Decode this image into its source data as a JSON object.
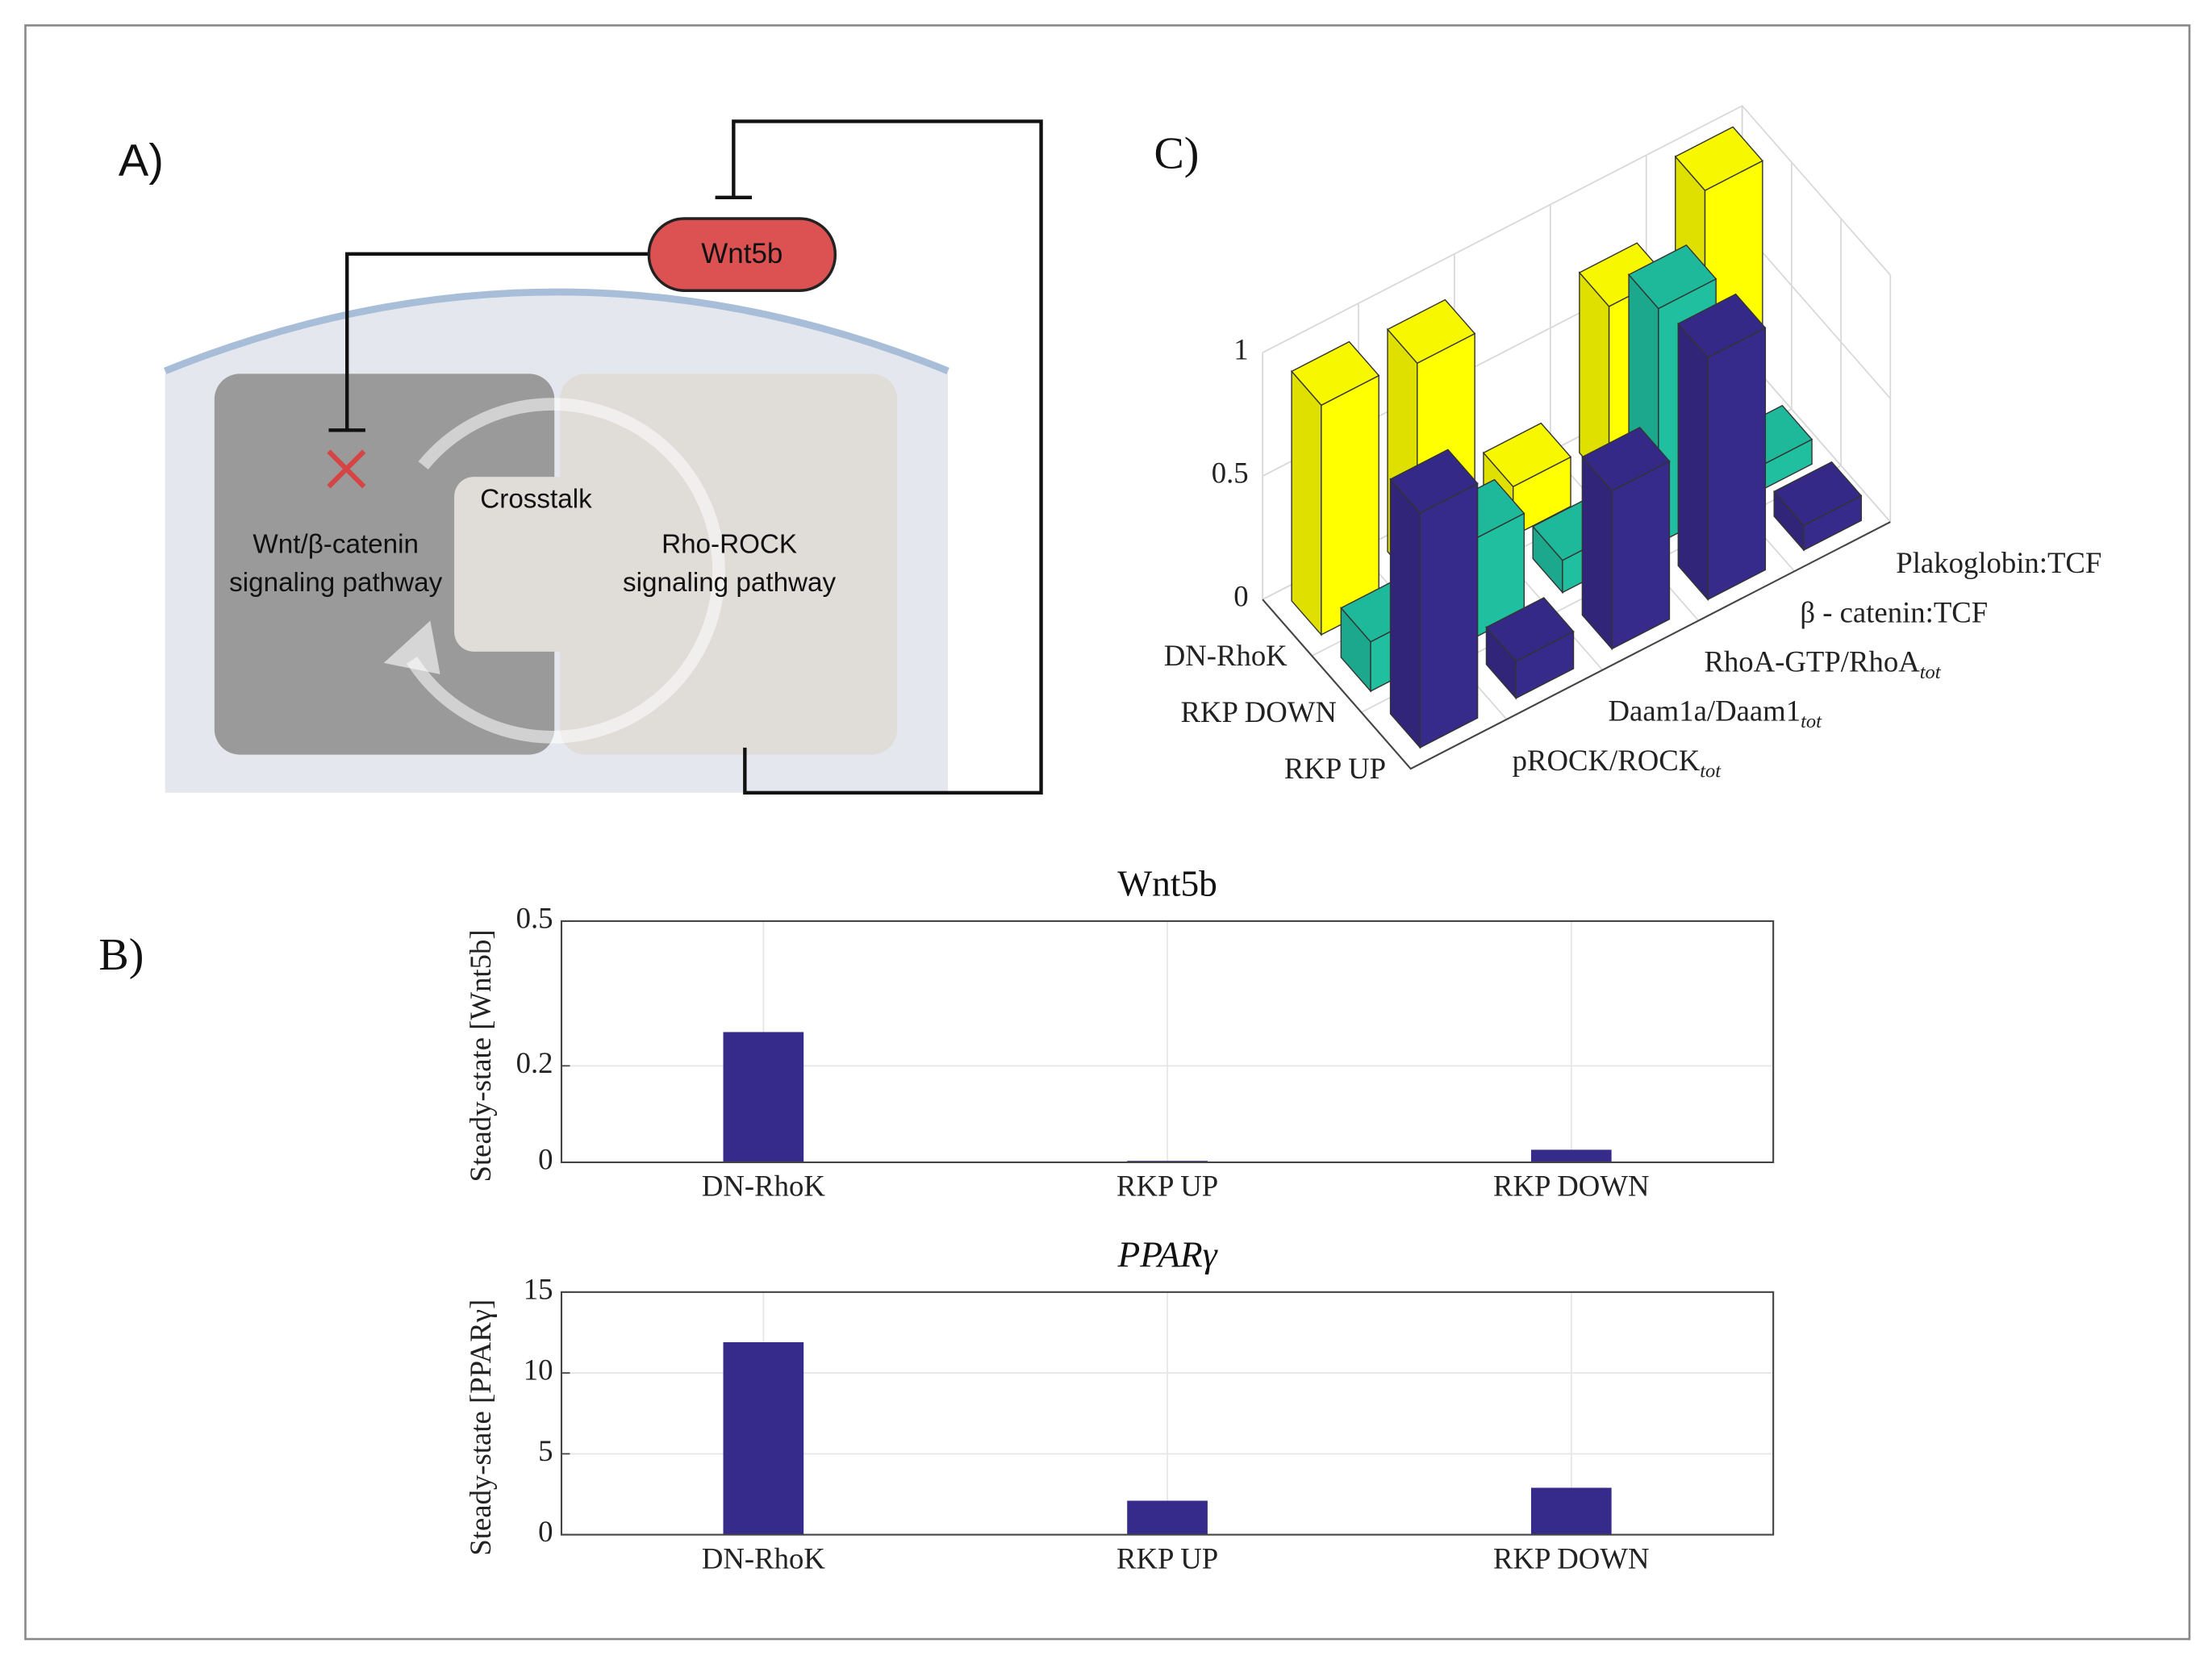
{
  "panel_labels": {
    "a": "A)",
    "b": "B)",
    "c": "C)"
  },
  "diagram": {
    "ligand": "Wnt5b",
    "crosstalk": "Crosstalk",
    "wnt_pathway": [
      "Wnt/β-catenin",
      "signaling pathway"
    ],
    "rho_pathway": [
      "Rho-ROCK",
      "signaling pathway"
    ]
  },
  "chart_data": [
    {
      "type": "bar",
      "title": "Wnt5b",
      "ylabel": "Steady-state [Wnt5b]",
      "categories": [
        "DN-RhoK",
        "RKP UP",
        "RKP DOWN"
      ],
      "values": [
        0.27,
        0.003,
        0.026
      ],
      "color": "#362a8a",
      "ylim": [
        0,
        0.5
      ],
      "yticks": [
        0,
        0.2,
        0.5
      ],
      "grid": true
    },
    {
      "type": "bar",
      "title": "PPARγ",
      "ylabel": "Steady-state [PPARγ]",
      "categories": [
        "DN-RhoK",
        "RKP UP",
        "RKP DOWN"
      ],
      "values": [
        11.9,
        2.1,
        2.9
      ],
      "color": "#362a8a",
      "ylim": [
        0,
        15
      ],
      "yticks": [
        0,
        5,
        10,
        15
      ],
      "grid": true
    },
    {
      "type": "bar3d",
      "columns": [
        {
          "text": "pROCK/ROCK",
          "sub": "tot"
        },
        {
          "text": "Daam1a/Daam1",
          "sub": "tot"
        },
        {
          "text": "RhoA-GTP/RhoA",
          "sub": "tot"
        },
        "β - catenin:TCF",
        "Plakoglobin:TCF"
      ],
      "series": [
        {
          "name": "DN-RhoK",
          "color": "#ffff00",
          "values": [
            0.93,
            0.9,
            0.2,
            0.73,
            1.0
          ]
        },
        {
          "name": "RKP DOWN",
          "color": "#1fbf9f",
          "values": [
            0.2,
            0.4,
            0.13,
            0.95,
            0.1
          ]
        },
        {
          "name": "RKP UP",
          "color": "#362a8a",
          "values": [
            0.95,
            0.15,
            0.64,
            0.98,
            0.1
          ]
        }
      ],
      "zlim": [
        0,
        1
      ],
      "zticks": [
        0,
        0.5,
        1
      ],
      "grid": true
    }
  ]
}
